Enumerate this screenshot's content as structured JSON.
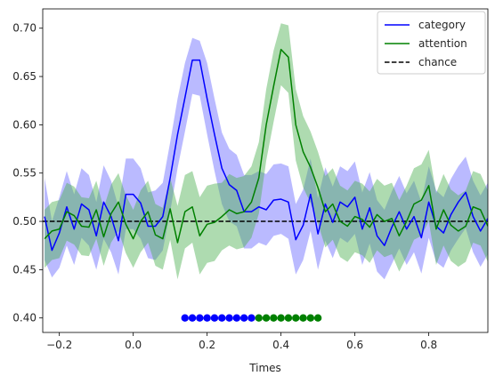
{
  "chart_data": {
    "type": "line",
    "title": "",
    "xlabel": "Times",
    "ylabel": "",
    "xlim": [
      -0.245,
      0.96
    ],
    "ylim": [
      0.385,
      0.72
    ],
    "xticks": [
      -0.2,
      0.0,
      0.2,
      0.4,
      0.6,
      0.8
    ],
    "xtick_labels": [
      "−0.2",
      "0.0",
      "0.2",
      "0.4",
      "0.6",
      "0.8"
    ],
    "yticks": [
      0.4,
      0.45,
      0.5,
      0.55,
      0.6,
      0.65,
      0.7
    ],
    "ytick_labels": [
      "0.40",
      "0.45",
      "0.50",
      "0.55",
      "0.60",
      "0.65",
      "0.70"
    ],
    "grid": false,
    "legend_position": "top-right",
    "x": [
      -0.24,
      -0.22,
      -0.2,
      -0.18,
      -0.16,
      -0.14,
      -0.12,
      -0.1,
      -0.08,
      -0.06,
      -0.04,
      -0.02,
      0.0,
      0.02,
      0.04,
      0.06,
      0.08,
      0.1,
      0.12,
      0.14,
      0.16,
      0.18,
      0.2,
      0.22,
      0.24,
      0.26,
      0.28,
      0.3,
      0.32,
      0.34,
      0.36,
      0.38,
      0.4,
      0.42,
      0.44,
      0.46,
      0.48,
      0.5,
      0.52,
      0.54,
      0.56,
      0.58,
      0.6,
      0.62,
      0.64,
      0.66,
      0.68,
      0.7,
      0.72,
      0.74,
      0.76,
      0.78,
      0.8,
      0.82,
      0.84,
      0.86,
      0.88,
      0.9,
      0.92,
      0.94,
      0.96
    ],
    "series": [
      {
        "name": "category",
        "color": "#0000ff",
        "band_color": "#6666ff",
        "values": [
          0.505,
          0.47,
          0.488,
          0.515,
          0.492,
          0.518,
          0.512,
          0.485,
          0.52,
          0.505,
          0.48,
          0.528,
          0.528,
          0.519,
          0.495,
          0.495,
          0.505,
          0.545,
          0.59,
          0.628,
          0.667,
          0.667,
          0.627,
          0.59,
          0.555,
          0.538,
          0.532,
          0.51,
          0.51,
          0.515,
          0.512,
          0.522,
          0.523,
          0.52,
          0.481,
          0.496,
          0.528,
          0.487,
          0.518,
          0.499,
          0.52,
          0.515,
          0.525,
          0.492,
          0.514,
          0.485,
          0.475,
          0.494,
          0.51,
          0.492,
          0.505,
          0.483,
          0.52,
          0.495,
          0.488,
          0.507,
          0.52,
          0.53,
          0.505,
          0.49,
          0.503
        ],
        "lower": [
          0.46,
          0.442,
          0.452,
          0.475,
          0.455,
          0.483,
          0.475,
          0.45,
          0.482,
          0.468,
          0.445,
          0.492,
          0.492,
          0.482,
          0.462,
          0.46,
          0.47,
          0.51,
          0.555,
          0.593,
          0.632,
          0.63,
          0.59,
          0.552,
          0.518,
          0.5,
          0.495,
          0.472,
          0.472,
          0.478,
          0.475,
          0.485,
          0.487,
          0.482,
          0.445,
          0.46,
          0.49,
          0.45,
          0.48,
          0.462,
          0.483,
          0.478,
          0.487,
          0.455,
          0.477,
          0.448,
          0.44,
          0.456,
          0.472,
          0.455,
          0.468,
          0.446,
          0.483,
          0.458,
          0.452,
          0.47,
          0.482,
          0.493,
          0.468,
          0.453,
          0.466
        ],
        "upper": [
          0.545,
          0.5,
          0.525,
          0.552,
          0.528,
          0.555,
          0.548,
          0.52,
          0.558,
          0.542,
          0.515,
          0.565,
          0.565,
          0.555,
          0.53,
          0.532,
          0.54,
          0.582,
          0.627,
          0.664,
          0.69,
          0.687,
          0.664,
          0.627,
          0.592,
          0.575,
          0.569,
          0.548,
          0.548,
          0.552,
          0.549,
          0.559,
          0.56,
          0.557,
          0.518,
          0.533,
          0.565,
          0.524,
          0.556,
          0.536,
          0.557,
          0.552,
          0.562,
          0.53,
          0.551,
          0.522,
          0.512,
          0.531,
          0.547,
          0.529,
          0.542,
          0.52,
          0.557,
          0.532,
          0.525,
          0.544,
          0.557,
          0.567,
          0.542,
          0.527,
          0.54
        ]
      },
      {
        "name": "attention",
        "color": "#008000",
        "band_color": "#4caf50",
        "values": [
          0.482,
          0.49,
          0.492,
          0.51,
          0.506,
          0.495,
          0.494,
          0.512,
          0.484,
          0.508,
          0.52,
          0.497,
          0.482,
          0.5,
          0.51,
          0.486,
          0.482,
          0.513,
          0.478,
          0.51,
          0.515,
          0.485,
          0.497,
          0.499,
          0.505,
          0.512,
          0.508,
          0.51,
          0.52,
          0.545,
          0.6,
          0.64,
          0.678,
          0.67,
          0.6,
          0.572,
          0.556,
          0.535,
          0.51,
          0.518,
          0.5,
          0.495,
          0.505,
          0.502,
          0.494,
          0.507,
          0.5,
          0.503,
          0.485,
          0.5,
          0.518,
          0.522,
          0.537,
          0.492,
          0.512,
          0.496,
          0.49,
          0.495,
          0.515,
          0.512,
          0.495
        ],
        "lower": [
          0.452,
          0.46,
          0.462,
          0.48,
          0.476,
          0.465,
          0.464,
          0.482,
          0.454,
          0.478,
          0.49,
          0.467,
          0.452,
          0.468,
          0.478,
          0.454,
          0.45,
          0.481,
          0.44,
          0.472,
          0.478,
          0.445,
          0.457,
          0.459,
          0.47,
          0.475,
          0.471,
          0.473,
          0.483,
          0.508,
          0.563,
          0.603,
          0.641,
          0.633,
          0.563,
          0.535,
          0.519,
          0.498,
          0.473,
          0.481,
          0.463,
          0.458,
          0.468,
          0.465,
          0.457,
          0.47,
          0.463,
          0.466,
          0.448,
          0.463,
          0.481,
          0.485,
          0.5,
          0.455,
          0.475,
          0.459,
          0.453,
          0.458,
          0.478,
          0.475,
          0.458
        ],
        "upper": [
          0.512,
          0.52,
          0.522,
          0.54,
          0.536,
          0.525,
          0.524,
          0.542,
          0.514,
          0.538,
          0.55,
          0.527,
          0.512,
          0.532,
          0.542,
          0.518,
          0.514,
          0.545,
          0.516,
          0.548,
          0.552,
          0.525,
          0.537,
          0.539,
          0.54,
          0.549,
          0.545,
          0.547,
          0.557,
          0.582,
          0.637,
          0.677,
          0.705,
          0.703,
          0.637,
          0.609,
          0.593,
          0.572,
          0.547,
          0.555,
          0.537,
          0.532,
          0.542,
          0.539,
          0.531,
          0.544,
          0.537,
          0.54,
          0.522,
          0.537,
          0.555,
          0.559,
          0.574,
          0.529,
          0.549,
          0.533,
          0.527,
          0.532,
          0.552,
          0.549,
          0.532
        ]
      },
      {
        "name": "chance",
        "color": "#000000",
        "style": "dashed",
        "value": 0.5
      }
    ],
    "significance_markers": [
      {
        "name": "category",
        "color": "#0000ff",
        "y": 0.4,
        "x": [
          0.14,
          0.16,
          0.18,
          0.2,
          0.22,
          0.24,
          0.26,
          0.28,
          0.3,
          0.32
        ]
      },
      {
        "name": "attention",
        "color": "#008000",
        "y": 0.4,
        "x": [
          0.34,
          0.36,
          0.38,
          0.4,
          0.42,
          0.44,
          0.46,
          0.48,
          0.5
        ]
      }
    ]
  }
}
